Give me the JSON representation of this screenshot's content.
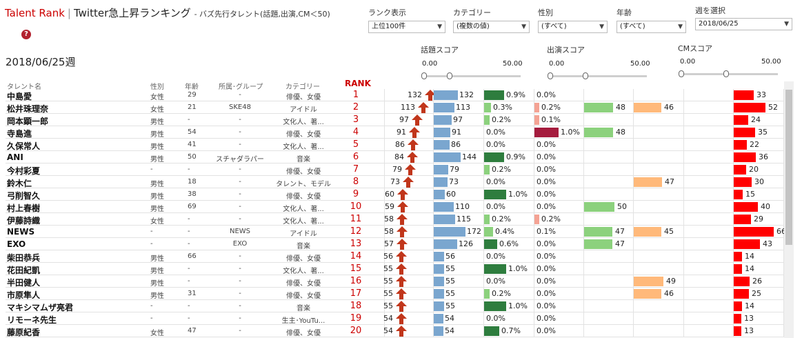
{
  "header": {
    "brand": "Talent Rank",
    "sep": "|",
    "title": "Twitter急上昇ランキング",
    "subtitle": "- バズ先行タレント(話題,出演,CM＜50)",
    "help": "?",
    "week_label": "2018/06/25週"
  },
  "filters": {
    "rank_display": {
      "label": "ランク表示",
      "value": "上位100件"
    },
    "category": {
      "label": "カテゴリー",
      "value": "(複数の値)"
    },
    "gender": {
      "label": "性別",
      "value": "(すべて)"
    },
    "age": {
      "label": "年齢",
      "value": "(すべて)"
    },
    "week": {
      "label": "週を選択",
      "value": "2018/06/25"
    }
  },
  "sliders": {
    "topic": {
      "label": "話題スコア",
      "min": "0.00",
      "max": "50.00"
    },
    "appearance": {
      "label": "出演スコア",
      "min": "0.00",
      "max": "50.00"
    },
    "cm": {
      "label": "CMスコア",
      "min": "0.00",
      "max": "50.00"
    }
  },
  "table": {
    "headers": {
      "name": "タレント名",
      "gender": "性別",
      "age": "年齢",
      "group": "所属･グループ",
      "category": "カテゴリー",
      "rank": "RANK"
    },
    "rows": [
      {
        "name": "中島愛",
        "gender": "女性",
        "age": "29",
        "group": "-",
        "category": "俳優、女優",
        "rank": "1",
        "trend": "132",
        "bar1": "132",
        "pct1": "0.9%",
        "pct2": "0.0%",
        "s1": "",
        "s2": "",
        "s3": "33",
        "pct1_color": "#2e7d3e",
        "pct2_color": ""
      },
      {
        "name": "松井珠理奈",
        "gender": "女性",
        "age": "21",
        "group": "SKE48",
        "category": "アイドル",
        "rank": "2",
        "trend": "113",
        "bar1": "113",
        "pct1": "0.3%",
        "pct2": "0.2%",
        "s1": "48",
        "s2": "46",
        "s3": "52",
        "pct1_color": "#8cd17d",
        "pct2_color": "#f4a394"
      },
      {
        "name": "岡本顕一郎",
        "gender": "男性",
        "age": "-",
        "group": "-",
        "category": "文化人、著...",
        "rank": "3",
        "trend": "97",
        "bar1": "97",
        "pct1": "0.2%",
        "pct2": "0.1%",
        "s1": "",
        "s2": "",
        "s3": "24",
        "pct1_color": "#8cd17d",
        "pct2_color": "#f4a394"
      },
      {
        "name": "寺島進",
        "gender": "男性",
        "age": "54",
        "group": "-",
        "category": "俳優、女優",
        "rank": "4",
        "trend": "91",
        "bar1": "91",
        "pct1": "0.0%",
        "pct2": "1.0%",
        "s1": "48",
        "s2": "",
        "s3": "35",
        "pct1_color": "",
        "pct2_color": "#a51c3e"
      },
      {
        "name": "久保常人",
        "gender": "男性",
        "age": "41",
        "group": "-",
        "category": "文化人、著...",
        "rank": "5",
        "trend": "86",
        "bar1": "86",
        "pct1": "0.0%",
        "pct2": "0.0%",
        "s1": "",
        "s2": "",
        "s3": "22",
        "pct1_color": "",
        "pct2_color": ""
      },
      {
        "name": "ANI",
        "gender": "男性",
        "age": "50",
        "group": "スチャダラパー",
        "category": "音楽",
        "rank": "6",
        "trend": "84",
        "bar1": "144",
        "pct1": "0.9%",
        "pct2": "0.0%",
        "s1": "",
        "s2": "",
        "s3": "36",
        "pct1_color": "#2e7d3e",
        "pct2_color": ""
      },
      {
        "name": "今村彩夏",
        "gender": "-",
        "age": "-",
        "group": "-",
        "category": "俳優、女優",
        "rank": "7",
        "trend": "79",
        "bar1": "79",
        "pct1": "0.2%",
        "pct2": "0.0%",
        "s1": "",
        "s2": "",
        "s3": "20",
        "pct1_color": "#8cd17d",
        "pct2_color": ""
      },
      {
        "name": "鈴木仁",
        "gender": "男性",
        "age": "18",
        "group": "-",
        "category": "タレント、モデル",
        "rank": "8",
        "trend": "73",
        "bar1": "73",
        "pct1": "0.0%",
        "pct2": "0.0%",
        "s1": "",
        "s2": "47",
        "s3": "30",
        "pct1_color": "",
        "pct2_color": ""
      },
      {
        "name": "弓削智久",
        "gender": "男性",
        "age": "38",
        "group": "-",
        "category": "俳優、女優",
        "rank": "9",
        "trend": "60",
        "bar1": "60",
        "pct1": "1.0%",
        "pct2": "0.0%",
        "s1": "",
        "s2": "",
        "s3": "15",
        "pct1_color": "#2e7d3e",
        "pct2_color": ""
      },
      {
        "name": "村上春樹",
        "gender": "男性",
        "age": "69",
        "group": "-",
        "category": "文化人、著...",
        "rank": "10",
        "trend": "59",
        "bar1": "110",
        "pct1": "0.0%",
        "pct2": "0.0%",
        "s1": "50",
        "s2": "",
        "s3": "40",
        "pct1_color": "",
        "pct2_color": ""
      },
      {
        "name": "伊藤詩織",
        "gender": "女性",
        "age": "-",
        "group": "-",
        "category": "文化人、著...",
        "rank": "11",
        "trend": "58",
        "bar1": "115",
        "pct1": "0.2%",
        "pct2": "0.2%",
        "s1": "",
        "s2": "",
        "s3": "29",
        "pct1_color": "#8cd17d",
        "pct2_color": "#f4a394"
      },
      {
        "name": "NEWS",
        "gender": "-",
        "age": "-",
        "group": "NEWS",
        "category": "アイドル",
        "rank": "12",
        "trend": "58",
        "bar1": "172",
        "pct1": "0.4%",
        "pct2": "0.1%",
        "s1": "47",
        "s2": "45",
        "s3": "66",
        "pct1_color": "#8cd17d",
        "pct2_color": ""
      },
      {
        "name": "EXO",
        "gender": "-",
        "age": "-",
        "group": "EXO",
        "category": "音楽",
        "rank": "13",
        "trend": "57",
        "bar1": "126",
        "pct1": "0.6%",
        "pct2": "0.0%",
        "s1": "47",
        "s2": "",
        "s3": "43",
        "pct1_color": "#2e7d3e",
        "pct2_color": ""
      },
      {
        "name": "柴田恭兵",
        "gender": "男性",
        "age": "66",
        "group": "-",
        "category": "俳優、女優",
        "rank": "14",
        "trend": "56",
        "bar1": "56",
        "pct1": "0.0%",
        "pct2": "0.0%",
        "s1": "",
        "s2": "",
        "s3": "14",
        "pct1_color": "",
        "pct2_color": ""
      },
      {
        "name": "花田紀凱",
        "gender": "男性",
        "age": "-",
        "group": "-",
        "category": "文化人、著...",
        "rank": "15",
        "trend": "55",
        "bar1": "55",
        "pct1": "1.0%",
        "pct2": "0.0%",
        "s1": "",
        "s2": "",
        "s3": "14",
        "pct1_color": "#2e7d3e",
        "pct2_color": ""
      },
      {
        "name": "半田健人",
        "gender": "男性",
        "age": "-",
        "group": "-",
        "category": "俳優、女優",
        "rank": "16",
        "trend": "55",
        "bar1": "55",
        "pct1": "0.0%",
        "pct2": "0.0%",
        "s1": "",
        "s2": "49",
        "s3": "26",
        "pct1_color": "",
        "pct2_color": ""
      },
      {
        "name": "市原隼人",
        "gender": "男性",
        "age": "31",
        "group": "-",
        "category": "俳優、女優",
        "rank": "17",
        "trend": "55",
        "bar1": "55",
        "pct1": "0.2%",
        "pct2": "0.0%",
        "s1": "",
        "s2": "46",
        "s3": "25",
        "pct1_color": "#8cd17d",
        "pct2_color": ""
      },
      {
        "name": "マキシマムザ亮君",
        "gender": "-",
        "age": "-",
        "group": "-",
        "category": "音楽",
        "rank": "18",
        "trend": "55",
        "bar1": "55",
        "pct1": "1.0%",
        "pct2": "0.0%",
        "s1": "",
        "s2": "",
        "s3": "14",
        "pct1_color": "#2e7d3e",
        "pct2_color": ""
      },
      {
        "name": "リモーネ先生",
        "gender": "-",
        "age": "-",
        "group": "-",
        "category": "生主･YouTu...",
        "rank": "19",
        "trend": "54",
        "bar1": "54",
        "pct1": "0.0%",
        "pct2": "0.0%",
        "s1": "",
        "s2": "",
        "s3": "13",
        "pct1_color": "",
        "pct2_color": ""
      },
      {
        "name": "藤原紀香",
        "gender": "女性",
        "age": "47",
        "group": "-",
        "category": "俳優、女優",
        "rank": "20",
        "trend": "54",
        "bar1": "54",
        "pct1": "0.7%",
        "pct2": "0.0%",
        "s1": "",
        "s2": "",
        "s3": "13",
        "pct1_color": "#2e7d3e",
        "pct2_color": ""
      }
    ]
  },
  "colors": {
    "accent": "#cc0000",
    "trend_arrow": "#c1361b",
    "bar_blue": "#7aa6cf",
    "score_green": "#8cd17d",
    "score_orange": "#ffb97a",
    "cm_red": "#ff0000"
  }
}
